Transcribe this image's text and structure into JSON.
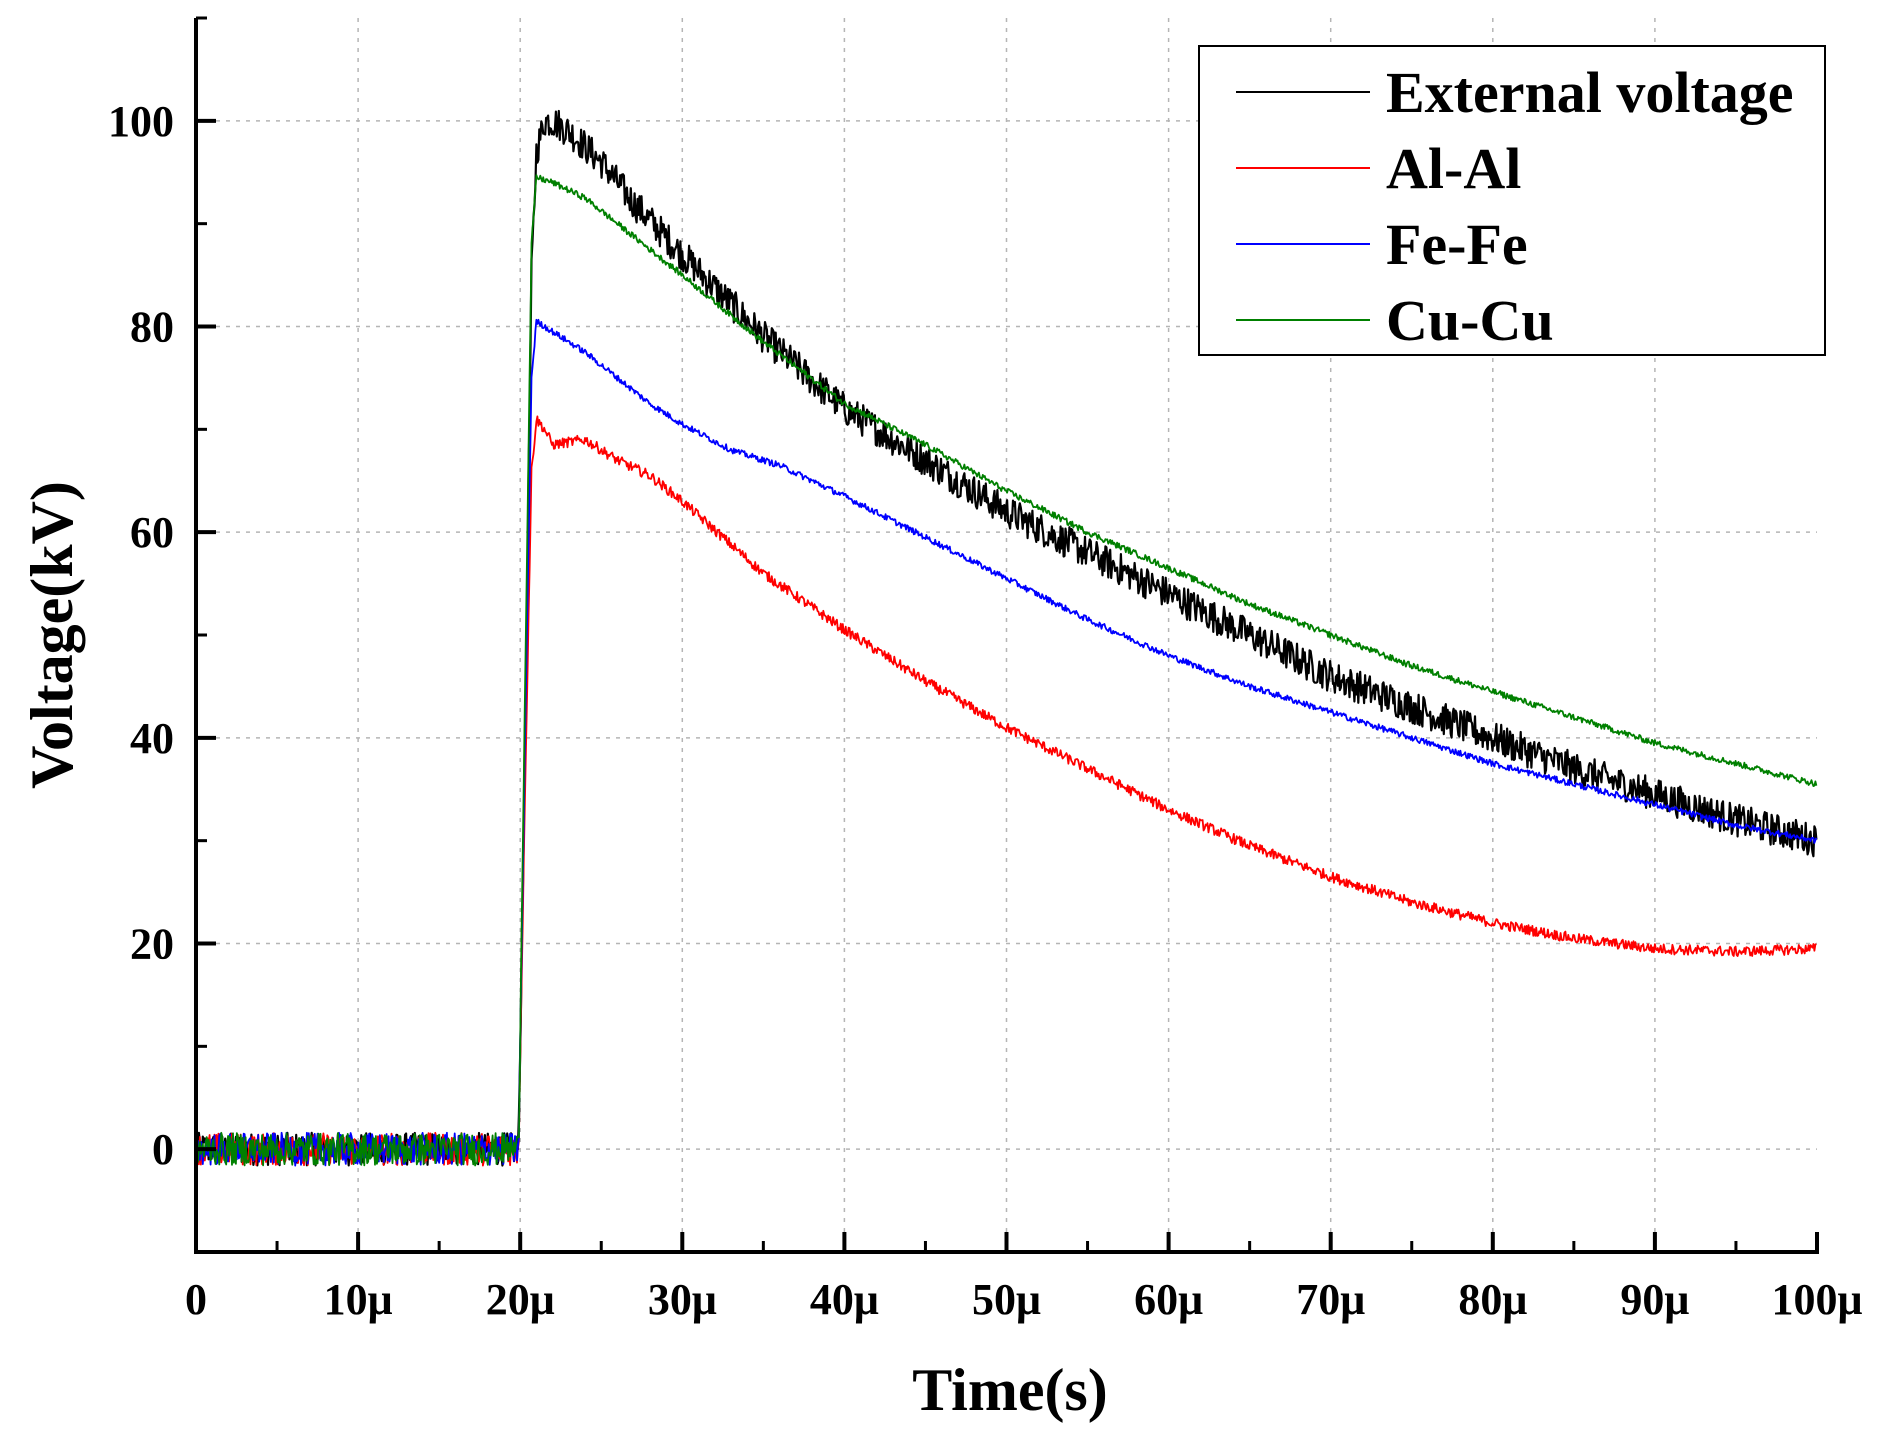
{
  "chart_data": {
    "type": "line",
    "title": "",
    "xlabel": "Time(s)",
    "ylabel": "Voltage(kV)",
    "xlim": [
      0,
      100
    ],
    "ylim": [
      -10,
      110
    ],
    "grid": true,
    "legend_position": "top-right",
    "x_ticks": [
      {
        "value": 0,
        "label": "0"
      },
      {
        "value": 10,
        "label": "10μ"
      },
      {
        "value": 20,
        "label": "20μ"
      },
      {
        "value": 30,
        "label": "30μ"
      },
      {
        "value": 40,
        "label": "40μ"
      },
      {
        "value": 50,
        "label": "50μ"
      },
      {
        "value": 60,
        "label": "60μ"
      },
      {
        "value": 70,
        "label": "70μ"
      },
      {
        "value": 80,
        "label": "80μ"
      },
      {
        "value": 90,
        "label": "90μ"
      },
      {
        "value": 100,
        "label": "100μ"
      }
    ],
    "y_ticks": [
      {
        "value": 0,
        "label": "0"
      },
      {
        "value": 20,
        "label": "20"
      },
      {
        "value": 40,
        "label": "40"
      },
      {
        "value": 60,
        "label": "60"
      },
      {
        "value": 80,
        "label": "80"
      },
      {
        "value": 100,
        "label": "100"
      }
    ],
    "series": [
      {
        "name": "External voltage",
        "color": "#000000",
        "noise": 1.6,
        "x": [
          0,
          19.9,
          20.3,
          20.7,
          21,
          21.5,
          22,
          23,
          25,
          27,
          30,
          35,
          40,
          45,
          50,
          55,
          60,
          65,
          70,
          75,
          80,
          85,
          90,
          95,
          100
        ],
        "y": [
          0,
          0,
          40,
          85,
          97,
          100,
          100,
          99,
          96,
          92,
          87,
          79,
          72,
          67,
          62,
          58,
          54,
          50,
          46,
          43,
          40,
          37,
          34.5,
          32,
          30
        ]
      },
      {
        "name": "Al-Al",
        "color": "#ff0000",
        "noise": 0.5,
        "x": [
          0,
          19.9,
          20.3,
          20.7,
          21,
          21.5,
          22,
          24,
          26,
          28,
          30,
          35,
          40,
          45,
          50,
          55,
          60,
          65,
          70,
          75,
          80,
          85,
          90,
          95,
          100
        ],
        "y": [
          0,
          0,
          35,
          66,
          71,
          70,
          68.5,
          69,
          67,
          65.5,
          63,
          56,
          50.5,
          45.5,
          41,
          37,
          33,
          29.5,
          26.5,
          24,
          22,
          20.5,
          19.5,
          19.2,
          19.5
        ]
      },
      {
        "name": "Fe-Fe",
        "color": "#0000ff",
        "noise": 0.3,
        "x": [
          0,
          19.9,
          20.3,
          20.7,
          21,
          22,
          24,
          26,
          28,
          30,
          33,
          36,
          40,
          45,
          50,
          55,
          60,
          65,
          70,
          75,
          80,
          85,
          90,
          95,
          100
        ],
        "y": [
          0,
          0,
          40,
          75,
          80.5,
          79.5,
          77.5,
          75,
          72.5,
          70.5,
          68,
          66.5,
          63.5,
          59.5,
          55.5,
          51.5,
          48,
          45,
          42.5,
          40,
          37.5,
          35.5,
          33.5,
          31.5,
          30
        ]
      },
      {
        "name": "Cu-Cu",
        "color": "#008000",
        "noise": 0.3,
        "x": [
          0,
          19.9,
          20.3,
          20.7,
          21,
          22,
          24,
          26,
          28,
          30,
          35,
          40,
          45,
          50,
          55,
          60,
          65,
          70,
          75,
          80,
          85,
          90,
          95,
          100
        ],
        "y": [
          0,
          0,
          45,
          88,
          94.5,
          94,
          92.5,
          90,
          87.5,
          85,
          78.5,
          72.5,
          68.5,
          64,
          60,
          56.5,
          53,
          50,
          47,
          44.5,
          42,
          39.5,
          37.5,
          35.5
        ]
      }
    ]
  }
}
